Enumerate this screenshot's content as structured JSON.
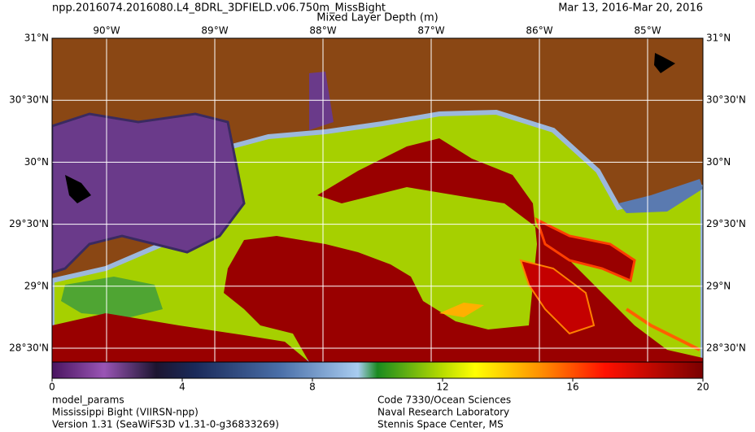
{
  "header": {
    "file": "npp.2016074.2016080.L4_8DRL_3DFIELD.v06.750m_MissBight",
    "dates": "Mar 13, 2016-Mar 20, 2016",
    "variable": "Mixed Layer Depth (m)"
  },
  "map": {
    "lon_labels": [
      "90°W",
      "89°W",
      "88°W",
      "87°W",
      "86°W",
      "85°W"
    ],
    "lat_labels": [
      "31°N",
      "30°30'N",
      "30°N",
      "29°30'N",
      "29°N",
      "28°30'N"
    ]
  },
  "colorbar": {
    "range": [
      0,
      20
    ],
    "ticks": [
      0,
      4,
      8,
      12,
      16,
      20
    ]
  },
  "footer": {
    "left": [
      "model_params",
      "Mississippi Bight (VIIRSN-npp)",
      "Version 1.31 (SeaWiFS3D v1.31-0-g36833269)"
    ],
    "right": [
      "Code 7330/Ocean Sciences",
      "Naval Research Laboratory",
      "Stennis Space Center, MS"
    ]
  }
}
